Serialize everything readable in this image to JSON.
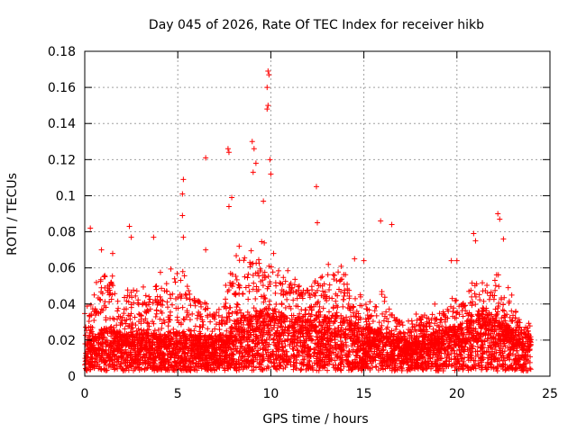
{
  "chart_data": {
    "type": "scatter",
    "title": "Day 045 of 2026, Rate Of TEC Index for receiver hikb",
    "xlabel": "GPS time / hours",
    "ylabel": "ROTI / TECUs",
    "xlim": [
      0,
      25
    ],
    "ylim": [
      0,
      0.18
    ],
    "xticks": [
      0,
      5,
      10,
      15,
      20,
      25
    ],
    "xtick_labels": [
      "0",
      "5",
      "10",
      "15",
      "20",
      "25"
    ],
    "yticks": [
      0,
      0.02,
      0.04,
      0.06,
      0.08,
      0.1,
      0.12,
      0.14,
      0.16,
      0.18
    ],
    "ytick_labels": [
      "0",
      "0.02",
      "0.04",
      "0.06",
      "0.08",
      "0.1",
      "0.12",
      "0.14",
      "0.16",
      "0.18"
    ],
    "grid": true,
    "marker": "+",
    "series_color": "#ff0000",
    "data_range_hours": [
      0,
      24
    ],
    "notable_points": [
      {
        "x": 9.85,
        "y": 0.169
      },
      {
        "x": 9.9,
        "y": 0.167
      },
      {
        "x": 9.8,
        "y": 0.16
      },
      {
        "x": 9.85,
        "y": 0.15
      },
      {
        "x": 9.8,
        "y": 0.148
      },
      {
        "x": 9.0,
        "y": 0.13
      },
      {
        "x": 9.1,
        "y": 0.126
      },
      {
        "x": 7.7,
        "y": 0.126
      },
      {
        "x": 7.75,
        "y": 0.124
      },
      {
        "x": 6.5,
        "y": 0.121
      },
      {
        "x": 9.95,
        "y": 0.12
      },
      {
        "x": 9.2,
        "y": 0.118
      },
      {
        "x": 9.05,
        "y": 0.113
      },
      {
        "x": 10.0,
        "y": 0.112
      },
      {
        "x": 5.3,
        "y": 0.109
      },
      {
        "x": 12.45,
        "y": 0.105
      },
      {
        "x": 5.25,
        "y": 0.101
      },
      {
        "x": 7.9,
        "y": 0.099
      },
      {
        "x": 9.6,
        "y": 0.097
      },
      {
        "x": 7.75,
        "y": 0.094
      },
      {
        "x": 22.2,
        "y": 0.09
      },
      {
        "x": 5.25,
        "y": 0.089
      },
      {
        "x": 22.3,
        "y": 0.087
      },
      {
        "x": 15.9,
        "y": 0.086
      },
      {
        "x": 16.5,
        "y": 0.084
      },
      {
        "x": 2.4,
        "y": 0.083
      },
      {
        "x": 0.3,
        "y": 0.082
      },
      {
        "x": 12.5,
        "y": 0.085
      },
      {
        "x": 2.5,
        "y": 0.077
      },
      {
        "x": 3.7,
        "y": 0.077
      },
      {
        "x": 5.3,
        "y": 0.077
      },
      {
        "x": 20.9,
        "y": 0.079
      },
      {
        "x": 21.0,
        "y": 0.075
      },
      {
        "x": 8.3,
        "y": 0.072
      },
      {
        "x": 6.5,
        "y": 0.07
      },
      {
        "x": 1.5,
        "y": 0.068
      },
      {
        "x": 0.9,
        "y": 0.07
      },
      {
        "x": 19.7,
        "y": 0.064
      },
      {
        "x": 20.0,
        "y": 0.064
      },
      {
        "x": 15.0,
        "y": 0.064
      },
      {
        "x": 22.5,
        "y": 0.076
      },
      {
        "x": 14.5,
        "y": 0.065
      }
    ],
    "envelope": [
      {
        "x": 0.0,
        "typ": 0.012,
        "max": 0.045
      },
      {
        "x": 0.5,
        "typ": 0.014,
        "max": 0.06
      },
      {
        "x": 1.0,
        "typ": 0.016,
        "max": 0.068
      },
      {
        "x": 1.5,
        "typ": 0.016,
        "max": 0.062
      },
      {
        "x": 2.0,
        "typ": 0.013,
        "max": 0.038
      },
      {
        "x": 2.5,
        "typ": 0.015,
        "max": 0.06
      },
      {
        "x": 3.0,
        "typ": 0.014,
        "max": 0.05
      },
      {
        "x": 3.5,
        "typ": 0.014,
        "max": 0.055
      },
      {
        "x": 4.0,
        "typ": 0.013,
        "max": 0.058
      },
      {
        "x": 4.5,
        "typ": 0.014,
        "max": 0.06
      },
      {
        "x": 5.0,
        "typ": 0.015,
        "max": 0.06
      },
      {
        "x": 5.5,
        "typ": 0.014,
        "max": 0.058
      },
      {
        "x": 6.0,
        "typ": 0.013,
        "max": 0.05
      },
      {
        "x": 6.5,
        "typ": 0.013,
        "max": 0.05
      },
      {
        "x": 7.0,
        "typ": 0.013,
        "max": 0.04
      },
      {
        "x": 7.5,
        "typ": 0.014,
        "max": 0.05
      },
      {
        "x": 8.0,
        "typ": 0.018,
        "max": 0.068
      },
      {
        "x": 8.5,
        "typ": 0.02,
        "max": 0.065
      },
      {
        "x": 9.0,
        "typ": 0.022,
        "max": 0.078
      },
      {
        "x": 9.5,
        "typ": 0.023,
        "max": 0.075
      },
      {
        "x": 10.0,
        "typ": 0.023,
        "max": 0.072
      },
      {
        "x": 10.5,
        "typ": 0.021,
        "max": 0.068
      },
      {
        "x": 11.0,
        "typ": 0.02,
        "max": 0.062
      },
      {
        "x": 11.5,
        "typ": 0.02,
        "max": 0.058
      },
      {
        "x": 12.0,
        "typ": 0.02,
        "max": 0.055
      },
      {
        "x": 12.5,
        "typ": 0.021,
        "max": 0.07
      },
      {
        "x": 13.0,
        "typ": 0.02,
        "max": 0.065
      },
      {
        "x": 13.5,
        "typ": 0.021,
        "max": 0.07
      },
      {
        "x": 14.0,
        "typ": 0.02,
        "max": 0.06
      },
      {
        "x": 14.5,
        "typ": 0.018,
        "max": 0.05
      },
      {
        "x": 15.0,
        "typ": 0.016,
        "max": 0.045
      },
      {
        "x": 15.5,
        "typ": 0.016,
        "max": 0.04
      },
      {
        "x": 16.0,
        "typ": 0.016,
        "max": 0.06
      },
      {
        "x": 16.5,
        "typ": 0.014,
        "max": 0.04
      },
      {
        "x": 17.0,
        "typ": 0.012,
        "max": 0.035
      },
      {
        "x": 17.5,
        "typ": 0.011,
        "max": 0.03
      },
      {
        "x": 18.0,
        "typ": 0.013,
        "max": 0.038
      },
      {
        "x": 18.5,
        "typ": 0.014,
        "max": 0.04
      },
      {
        "x": 19.0,
        "typ": 0.015,
        "max": 0.04
      },
      {
        "x": 19.5,
        "typ": 0.016,
        "max": 0.045
      },
      {
        "x": 20.0,
        "typ": 0.017,
        "max": 0.045
      },
      {
        "x": 20.5,
        "typ": 0.018,
        "max": 0.05
      },
      {
        "x": 21.0,
        "typ": 0.022,
        "max": 0.065
      },
      {
        "x": 21.5,
        "typ": 0.022,
        "max": 0.06
      },
      {
        "x": 22.0,
        "typ": 0.02,
        "max": 0.06
      },
      {
        "x": 22.5,
        "typ": 0.018,
        "max": 0.055
      },
      {
        "x": 23.0,
        "typ": 0.016,
        "max": 0.045
      },
      {
        "x": 23.5,
        "typ": 0.014,
        "max": 0.035
      },
      {
        "x": 24.0,
        "typ": 0.013,
        "max": 0.03
      }
    ]
  }
}
